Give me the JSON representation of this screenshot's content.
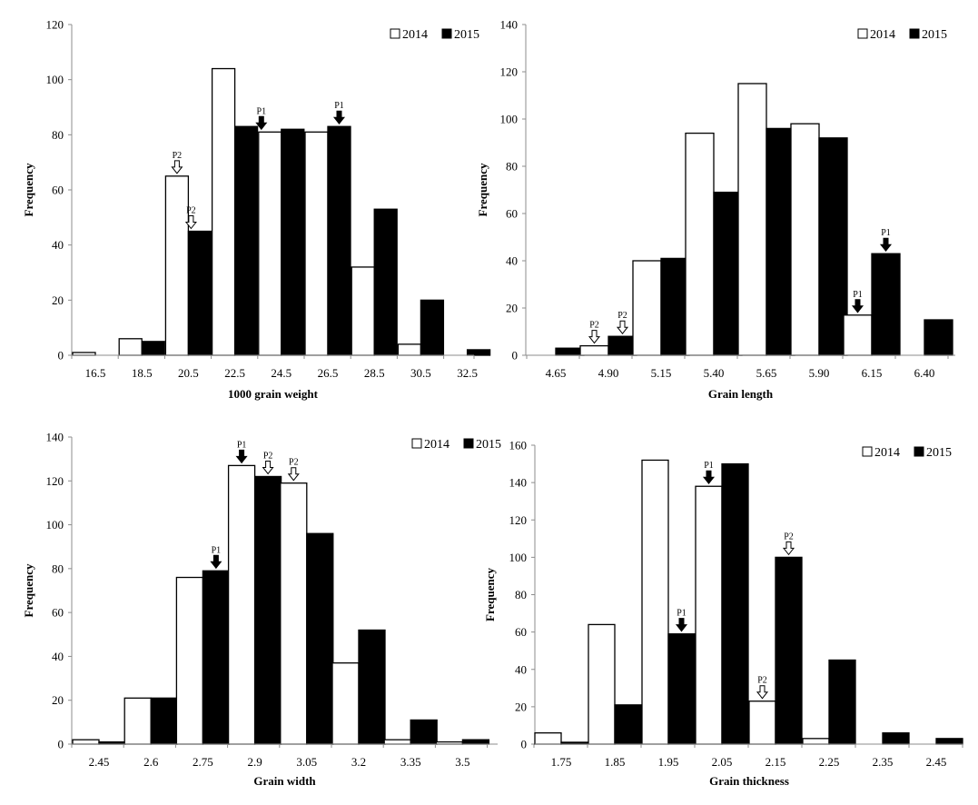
{
  "chart_data": [
    {
      "type": "bar",
      "xlabel": "1000 grain weight",
      "ylabel": "Frequency",
      "ylim": [
        0,
        120
      ],
      "ytick_step": 20,
      "categories": [
        "16.5",
        "18.5",
        "20.5",
        "22.5",
        "24.5",
        "26.5",
        "28.5",
        "30.5",
        "32.5"
      ],
      "series": [
        {
          "name": "2014",
          "color": "#ffffff",
          "values": [
            1,
            6,
            65,
            104,
            81,
            81,
            32,
            4,
            0
          ]
        },
        {
          "name": "2015",
          "color": "#000000",
          "values": [
            0,
            5,
            45,
            83,
            82,
            83,
            53,
            20,
            2
          ]
        }
      ],
      "markers": [
        {
          "label": "P2",
          "series": 0,
          "index": 2,
          "style": "hollow"
        },
        {
          "label": "P2",
          "series": 1,
          "index": 2,
          "edge": "left",
          "style": "hollow"
        },
        {
          "label": "P1",
          "series": 0,
          "index": 4,
          "edge": "left",
          "style": "filled"
        },
        {
          "label": "P1",
          "series": 1,
          "index": 5,
          "style": "filled"
        }
      ],
      "legend": "top-right"
    },
    {
      "type": "bar",
      "xlabel": "Grain length",
      "ylabel": "Frequency",
      "ylim": [
        0,
        140
      ],
      "ytick_step": 20,
      "categories": [
        "4.65",
        "4.90",
        "5.15",
        "5.40",
        "5.65",
        "5.90",
        "6.15",
        "6.40"
      ],
      "series": [
        {
          "name": "2014",
          "color": "#ffffff",
          "values": [
            0,
            4,
            40,
            94,
            115,
            98,
            17,
            0
          ]
        },
        {
          "name": "2015",
          "color": "#000000",
          "values": [
            3,
            8,
            41,
            69,
            96,
            92,
            43,
            15
          ]
        }
      ],
      "markers": [
        {
          "label": "P2",
          "series": 0,
          "index": 1,
          "style": "hollow"
        },
        {
          "label": "P2",
          "series": 1,
          "index": 1,
          "style": "hollow"
        },
        {
          "label": "P1",
          "series": 0,
          "index": 6,
          "style": "filled"
        },
        {
          "label": "P1",
          "series": 1,
          "index": 6,
          "style": "filled"
        }
      ],
      "legend": "top-right"
    },
    {
      "type": "bar",
      "xlabel": "Grain width",
      "ylabel": "Frequency",
      "ylim": [
        0,
        140
      ],
      "ytick_step": 20,
      "categories": [
        "2.45",
        "2.6",
        "2.75",
        "2.9",
        "3.05",
        "3.2",
        "3.35",
        "3.5"
      ],
      "series": [
        {
          "name": "2014",
          "color": "#ffffff",
          "values": [
            2,
            21,
            76,
            127,
            119,
            37,
            2,
            1
          ]
        },
        {
          "name": "2015",
          "color": "#000000",
          "values": [
            1,
            21,
            79,
            122,
            96,
            52,
            11,
            2
          ]
        }
      ],
      "markers": [
        {
          "label": "P1",
          "series": 1,
          "index": 2,
          "style": "filled"
        },
        {
          "label": "P1",
          "series": 0,
          "index": 3,
          "style": "filled"
        },
        {
          "label": "P2",
          "series": 1,
          "index": 3,
          "style": "hollow"
        },
        {
          "label": "P2",
          "series": 0,
          "index": 4,
          "style": "hollow"
        }
      ],
      "legend": "top-right"
    },
    {
      "type": "bar",
      "xlabel": "Grain thickness",
      "ylabel": "Frequency",
      "ylim": [
        0,
        160
      ],
      "ytick_step": 20,
      "categories": [
        "1.75",
        "1.85",
        "1.95",
        "2.05",
        "2.15",
        "2.25",
        "2.35",
        "2.45"
      ],
      "series": [
        {
          "name": "2014",
          "color": "#ffffff",
          "values": [
            6,
            64,
            152,
            138,
            23,
            3,
            0,
            0
          ]
        },
        {
          "name": "2015",
          "color": "#000000",
          "values": [
            1,
            21,
            59,
            150,
            100,
            45,
            6,
            3
          ]
        }
      ],
      "markers": [
        {
          "label": "P1",
          "series": 1,
          "index": 2,
          "style": "filled"
        },
        {
          "label": "P1",
          "series": 0,
          "index": 3,
          "style": "filled"
        },
        {
          "label": "P2",
          "series": 0,
          "index": 4,
          "style": "hollow"
        },
        {
          "label": "P2",
          "series": 1,
          "index": 4,
          "style": "hollow"
        }
      ],
      "legend": "top-right"
    }
  ]
}
